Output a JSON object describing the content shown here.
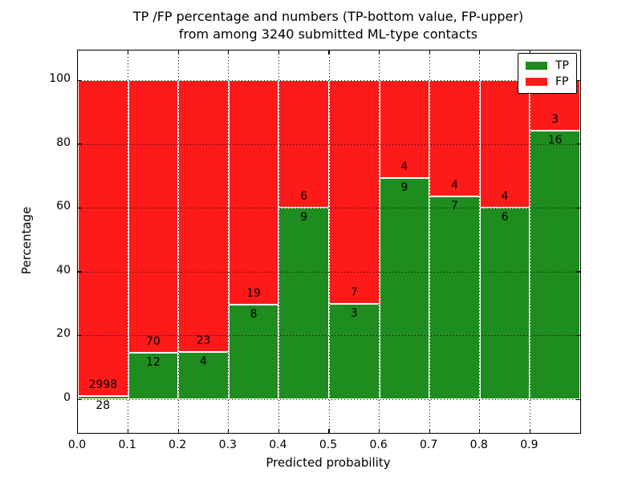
{
  "title": {
    "line1": "TP /FP percentage and numbers (TP-bottom value, FP-upper)",
    "line2": "from among 3240 submitted ML-type contacts"
  },
  "chart_data": {
    "type": "bar",
    "stacked": true,
    "normalized_to_percent": true,
    "title": "TP /FP percentage and numbers (TP-bottom value, FP-upper)\nfrom among 3240 submitted ML-type contacts",
    "xlabel": "Predicted probability",
    "ylabel": "Percentage",
    "bin_edges": [
      0.0,
      0.1,
      0.2,
      0.3,
      0.4,
      0.5,
      0.6,
      0.7,
      0.8,
      0.9,
      1.0
    ],
    "series": [
      {
        "name": "TP",
        "color": "#1e8c1e",
        "counts": [
          28,
          12,
          4,
          8,
          9,
          3,
          9,
          7,
          6,
          16
        ]
      },
      {
        "name": "FP",
        "color": "#ff1a1a",
        "counts": [
          2998,
          70,
          23,
          19,
          6,
          7,
          4,
          4,
          4,
          3
        ]
      }
    ],
    "tp_percent_heights": [
      0.93,
      14.63,
      14.81,
      29.63,
      60.0,
      30.0,
      69.23,
      63.64,
      60.0,
      84.21
    ],
    "total_contacts": 3240,
    "yticks": [
      0,
      20,
      40,
      60,
      80,
      100
    ],
    "ytick_labels": [
      "0",
      "20",
      "40",
      "60",
      "80",
      "100"
    ],
    "xtick_labels": [
      "0.0",
      "0.1",
      "0.2",
      "0.3",
      "0.4",
      "0.5",
      "0.6",
      "0.7",
      "0.8",
      "0.9"
    ],
    "xlim": [
      0.0,
      1.0
    ],
    "ylim": [
      -10.5,
      109.0
    ],
    "grid": "dotted",
    "legend_position": "upper right"
  },
  "legend": {
    "items": [
      {
        "label": "TP",
        "color": "#1e8c1e"
      },
      {
        "label": "FP",
        "color": "#ff1a1a"
      }
    ]
  }
}
